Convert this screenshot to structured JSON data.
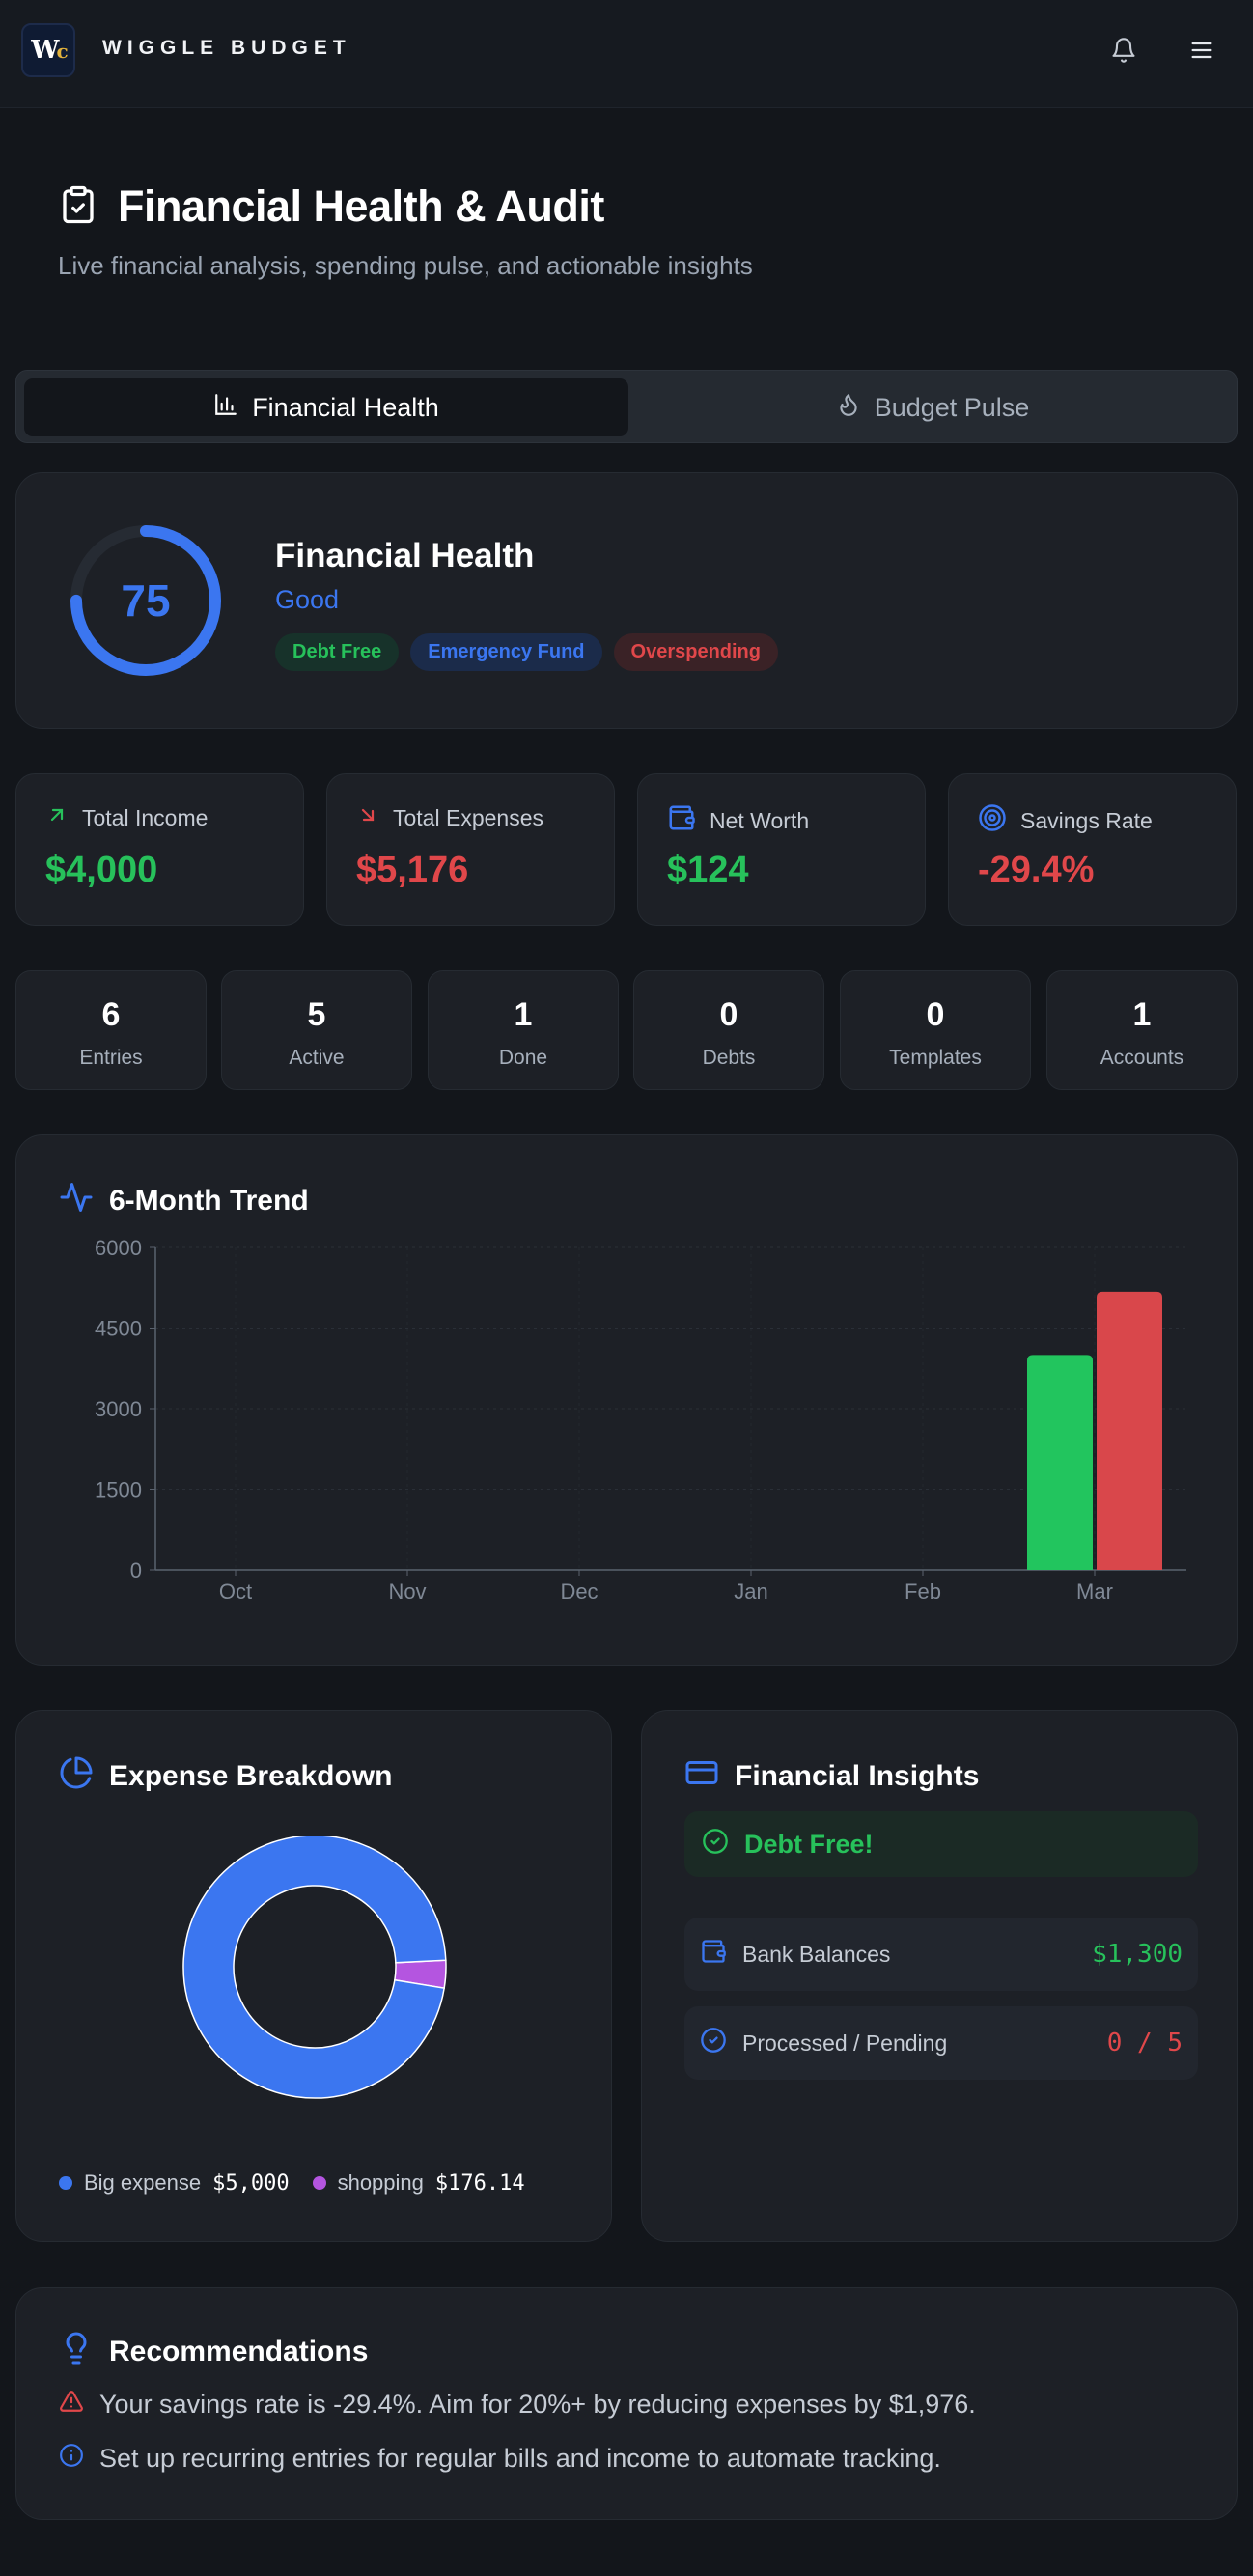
{
  "header": {
    "logo_text": "W",
    "logo_accent": "c",
    "brand": "WIGGLE BUDGET",
    "icons": [
      "bell-icon",
      "menu-icon"
    ]
  },
  "page": {
    "title": "Financial Health & Audit",
    "subtitle": "Live financial analysis, spending pulse, and actionable insights"
  },
  "tabs": [
    {
      "label": "Financial Health",
      "icon": "bar-chart-icon",
      "active": true
    },
    {
      "label": "Budget Pulse",
      "icon": "flame-icon",
      "active": false
    }
  ],
  "health": {
    "score": "75",
    "score_fraction": 0.75,
    "title": "Financial Health",
    "status": "Good",
    "badges": [
      "Debt Free",
      "Emergency Fund",
      "Overspending"
    ]
  },
  "stats": [
    {
      "label": "Total Income",
      "value": "$4,000",
      "icon": "arrow-up-right-icon",
      "color": "#27c15b"
    },
    {
      "label": "Total Expenses",
      "value": "$5,176",
      "icon": "arrow-down-right-icon",
      "color": "#e0474a"
    },
    {
      "label": "Net Worth",
      "value": "$124",
      "icon": "wallet-icon",
      "color": "#27c15b"
    },
    {
      "label": "Savings Rate",
      "value": "-29.4%",
      "icon": "target-icon",
      "color": "#e0474a"
    }
  ],
  "counters": [
    {
      "num": "6",
      "label": "Entries"
    },
    {
      "num": "5",
      "label": "Active"
    },
    {
      "num": "1",
      "label": "Done"
    },
    {
      "num": "0",
      "label": "Debts"
    },
    {
      "num": "0",
      "label": "Templates"
    },
    {
      "num": "1",
      "label": "Accounts"
    }
  ],
  "trend": {
    "title": "6-Month Trend"
  },
  "chart_data": {
    "type": "bar",
    "categories": [
      "Oct",
      "Nov",
      "Dec",
      "Jan",
      "Feb",
      "Mar"
    ],
    "series": [
      {
        "color": "#22c55e",
        "values": [
          0,
          0,
          0,
          0,
          0,
          4000
        ]
      },
      {
        "color": "#d9474b",
        "values": [
          0,
          0,
          0,
          0,
          0,
          5176
        ]
      }
    ],
    "y_ticks": [
      "0",
      "1500",
      "3000",
      "4500",
      "6000"
    ],
    "ylim": [
      0,
      6000
    ],
    "grid": true
  },
  "expense": {
    "title": "Expense Breakdown",
    "slices": [
      {
        "name": "Big expense",
        "amount": "$5,000",
        "value": 5000,
        "color": "#3b76f0"
      },
      {
        "name": "shopping",
        "amount": "$176.14",
        "value": 176.14,
        "color": "#b455e0"
      }
    ]
  },
  "insights": {
    "title": "Financial Insights",
    "debt_free": "Debt Free!",
    "rows": [
      {
        "label": "Bank Balances",
        "value": "$1,300",
        "color": "#27c15b"
      },
      {
        "label": "Processed / Pending",
        "value": "0 / 5",
        "color": "#e0474a"
      }
    ]
  },
  "recommendations": {
    "title": "Recommendations",
    "items": [
      {
        "text": "Your savings rate is -29.4%. Aim for 20%+ by reducing expenses by $1,976.",
        "icon": "warning-icon",
        "color": "#e0474a"
      },
      {
        "text": "Set up recurring entries for regular bills and income to automate tracking.",
        "icon": "info-icon",
        "color": "#3b76f0"
      }
    ]
  }
}
